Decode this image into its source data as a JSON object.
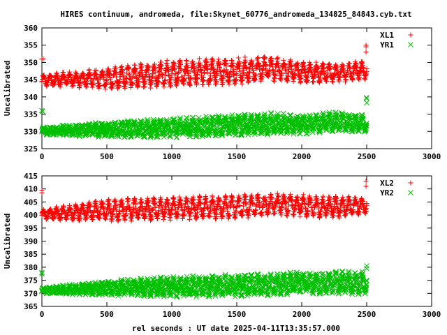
{
  "title": "HIRES continuum, andromeda, file:Skynet_60776_andromeda_134825_84843.cyb.txt",
  "xlabel": "rel seconds : UT date 2025-04-11T13:35:57.000",
  "colors": {
    "red": "#ff0000",
    "green": "#00c000",
    "axis": "#000000"
  },
  "chart_data": [
    {
      "type": "scatter",
      "ylabel": "Uncalibrated",
      "xlim": [
        0,
        3000
      ],
      "ylim": [
        325,
        360
      ],
      "xticks": [
        0,
        500,
        1000,
        1500,
        2000,
        2500,
        3000
      ],
      "yticks": [
        325,
        330,
        335,
        340,
        345,
        350,
        355,
        360
      ],
      "legend_position": "top-right",
      "grid": false,
      "series": [
        {
          "name": "XL1",
          "marker": "plus",
          "color": "#ff0000",
          "profile_x": [
            0,
            500,
            1000,
            1500,
            1800,
            2000,
            2250,
            2500
          ],
          "profile_center": [
            344.8,
            345.3,
            346.8,
            347.5,
            348.2,
            347.2,
            346.8,
            347.8
          ],
          "profile_amplitude": [
            1.2,
            2.2,
            2.8,
            2.8,
            2.6,
            2.2,
            2.0,
            2.0
          ],
          "outliers": [
            [
              0,
              351
            ],
            [
              10,
              351
            ],
            [
              2495,
              353
            ],
            [
              2495,
              354.5
            ],
            [
              2495,
              355
            ]
          ]
        },
        {
          "name": "YR1",
          "marker": "x",
          "color": "#00c000",
          "profile_x": [
            0,
            500,
            1000,
            1500,
            1800,
            2000,
            2250,
            2500
          ],
          "profile_center": [
            330.2,
            330.5,
            331.0,
            331.8,
            332.3,
            332.0,
            332.8,
            332.2
          ],
          "profile_amplitude": [
            0.8,
            1.6,
            2.0,
            2.2,
            2.2,
            2.0,
            2.0,
            1.8
          ],
          "outliers": [
            [
              0,
              336
            ],
            [
              5,
              335.8
            ],
            [
              2500,
              338.3
            ],
            [
              2500,
              339.5
            ],
            [
              2498,
              339.8
            ]
          ]
        }
      ]
    },
    {
      "type": "scatter",
      "ylabel": "Uncalibrated",
      "xlim": [
        0,
        3000
      ],
      "ylim": [
        365,
        415
      ],
      "xticks": [
        0,
        500,
        1000,
        1500,
        2000,
        2500,
        3000
      ],
      "yticks": [
        365,
        370,
        375,
        380,
        385,
        390,
        395,
        400,
        405,
        410,
        415
      ],
      "legend_position": "top-right",
      "grid": false,
      "series": [
        {
          "name": "XL2",
          "marker": "plus",
          "color": "#ff0000",
          "profile_x": [
            0,
            500,
            1000,
            1500,
            1800,
            2000,
            2250,
            2500
          ],
          "profile_center": [
            400.2,
            401.8,
            402.5,
            403.2,
            404.2,
            403.6,
            403.0,
            403.5
          ],
          "profile_amplitude": [
            1.5,
            3.0,
            3.2,
            3.2,
            3.0,
            3.0,
            3.0,
            2.8
          ],
          "outliers": [
            [
              0,
              408.5
            ],
            [
              0,
              409.5
            ],
            [
              2495,
              411
            ],
            [
              2495,
              413
            ]
          ]
        },
        {
          "name": "YR2",
          "marker": "x",
          "color": "#00c000",
          "profile_x": [
            0,
            500,
            1000,
            1500,
            1800,
            2000,
            2250,
            2500
          ],
          "profile_center": [
            371.0,
            372.0,
            372.5,
            373.0,
            373.5,
            374.0,
            374.0,
            374.0
          ],
          "profile_amplitude": [
            0.8,
            2.0,
            2.8,
            3.0,
            3.0,
            3.0,
            3.2,
            3.0
          ],
          "outliers": [
            [
              0,
              377.5
            ],
            [
              0,
              378
            ],
            [
              2500,
              379.5
            ],
            [
              2500,
              380.5
            ]
          ]
        }
      ]
    }
  ]
}
